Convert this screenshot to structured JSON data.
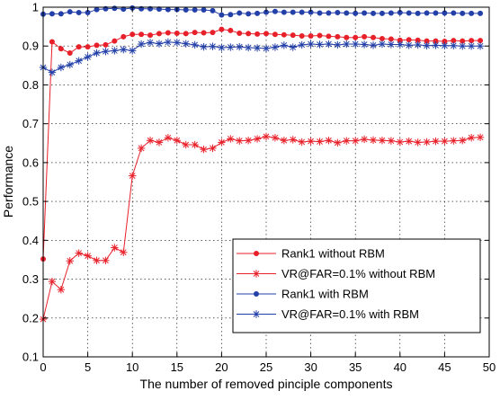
{
  "chart_data": {
    "type": "line",
    "xlabel": "The number of removed pinciple components",
    "ylabel": "Performance",
    "xlim": [
      0,
      50
    ],
    "ylim": [
      0.1,
      1
    ],
    "xticks": [
      0,
      5,
      10,
      15,
      20,
      25,
      30,
      35,
      40,
      45,
      50
    ],
    "yticks": [
      0.1,
      0.2,
      0.3,
      0.4,
      0.5,
      0.6,
      0.7,
      0.8,
      0.9,
      1
    ],
    "xtick_labels": [
      "0",
      "5",
      "10",
      "15",
      "20",
      "25",
      "30",
      "35",
      "40",
      "45",
      "50"
    ],
    "ytick_labels": [
      "0.1",
      "0.2",
      "0.3",
      "0.4",
      "0.5",
      "0.6",
      "0.7",
      "0.8",
      "0.9",
      "1"
    ],
    "grid": true,
    "legend_position": "bottom-right",
    "x": [
      0,
      1,
      2,
      3,
      4,
      5,
      6,
      7,
      8,
      9,
      10,
      11,
      12,
      13,
      14,
      15,
      16,
      17,
      18,
      19,
      20,
      21,
      22,
      23,
      24,
      25,
      26,
      27,
      28,
      29,
      30,
      31,
      32,
      33,
      34,
      35,
      36,
      37,
      38,
      39,
      40,
      41,
      42,
      43,
      44,
      45,
      46,
      47,
      48,
      49
    ],
    "series": [
      {
        "name": "Rank1 without RBM",
        "color": "#e8202a",
        "marker": "dot",
        "values": [
          0.352,
          0.911,
          0.893,
          0.882,
          0.898,
          0.898,
          0.902,
          0.903,
          0.913,
          0.924,
          0.93,
          0.93,
          0.928,
          0.932,
          0.934,
          0.933,
          0.932,
          0.935,
          0.934,
          0.935,
          0.943,
          0.94,
          0.933,
          0.932,
          0.931,
          0.932,
          0.93,
          0.929,
          0.928,
          0.926,
          0.926,
          0.927,
          0.925,
          0.924,
          0.922,
          0.922,
          0.924,
          0.922,
          0.919,
          0.918,
          0.915,
          0.916,
          0.915,
          0.913,
          0.913,
          0.912,
          0.914,
          0.913,
          0.914,
          0.914
        ]
      },
      {
        "name": "VR@FAR=0.1% without RBM",
        "color": "#e8202a",
        "marker": "star",
        "values": [
          0.197,
          0.294,
          0.273,
          0.347,
          0.367,
          0.36,
          0.348,
          0.348,
          0.381,
          0.369,
          0.566,
          0.637,
          0.657,
          0.652,
          0.664,
          0.657,
          0.646,
          0.646,
          0.634,
          0.637,
          0.652,
          0.661,
          0.656,
          0.657,
          0.661,
          0.667,
          0.664,
          0.657,
          0.659,
          0.653,
          0.655,
          0.654,
          0.657,
          0.651,
          0.656,
          0.656,
          0.66,
          0.658,
          0.657,
          0.656,
          0.653,
          0.655,
          0.652,
          0.653,
          0.655,
          0.655,
          0.656,
          0.657,
          0.664,
          0.665
        ]
      },
      {
        "name": "Rank1 with RBM",
        "color": "#2340a8",
        "marker": "dot",
        "values": [
          0.982,
          0.983,
          0.983,
          0.988,
          0.986,
          0.986,
          0.994,
          0.996,
          0.997,
          0.995,
          0.998,
          0.996,
          0.996,
          0.995,
          0.994,
          0.994,
          0.993,
          0.993,
          0.993,
          0.991,
          0.98,
          0.981,
          0.985,
          0.983,
          0.984,
          0.987,
          0.989,
          0.987,
          0.987,
          0.987,
          0.987,
          0.985,
          0.985,
          0.986,
          0.985,
          0.984,
          0.985,
          0.984,
          0.984,
          0.985,
          0.986,
          0.985,
          0.984,
          0.985,
          0.985,
          0.985,
          0.985,
          0.984,
          0.984,
          0.984
        ]
      },
      {
        "name": "VR@FAR=0.1% with RBM",
        "color": "#2340a8",
        "marker": "star",
        "values": [
          0.845,
          0.832,
          0.845,
          0.852,
          0.862,
          0.872,
          0.882,
          0.886,
          0.888,
          0.891,
          0.888,
          0.905,
          0.909,
          0.906,
          0.91,
          0.909,
          0.906,
          0.903,
          0.898,
          0.899,
          0.896,
          0.897,
          0.898,
          0.896,
          0.895,
          0.894,
          0.897,
          0.902,
          0.897,
          0.903,
          0.905,
          0.904,
          0.905,
          0.903,
          0.905,
          0.905,
          0.904,
          0.902,
          0.905,
          0.904,
          0.904,
          0.902,
          0.903,
          0.901,
          0.902,
          0.901,
          0.901,
          0.9,
          0.9,
          0.9
        ]
      }
    ]
  }
}
